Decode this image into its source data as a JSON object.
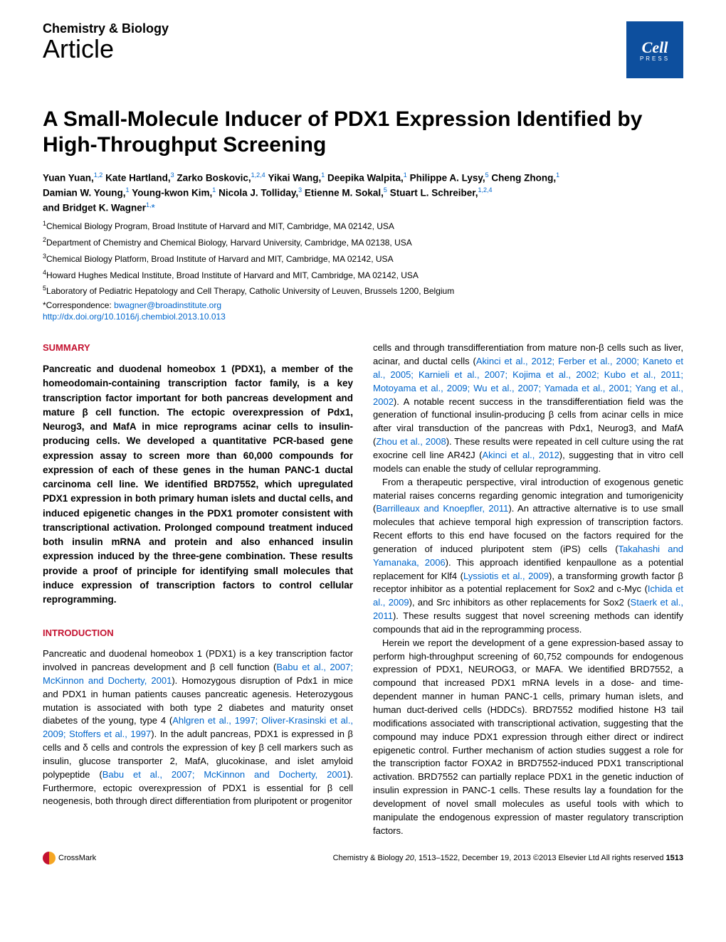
{
  "header": {
    "journal": "Chemistry & Biology",
    "article_type": "Article",
    "logo_top": "Cell",
    "logo_bottom": "PRESS"
  },
  "title": "A Small-Molecule Inducer of PDX1 Expression Identified by High-Throughput Screening",
  "authors_line1": "Yuan Yuan,",
  "authors_sup1": "1,2",
  "authors_a2": " Kate Hartland,",
  "authors_sup2": "3",
  "authors_a3": " Zarko Boskovic,",
  "authors_sup3": "1,2,4",
  "authors_a4": " Yikai Wang,",
  "authors_sup4": "1",
  "authors_a5": " Deepika Walpita,",
  "authors_sup5": "1",
  "authors_a6": " Philippe A. Lysy,",
  "authors_sup6": "5",
  "authors_a7": " Cheng Zhong,",
  "authors_sup7": "1",
  "authors_a8": "Damian W. Young,",
  "authors_sup8": "1",
  "authors_a9": " Young-kwon Kim,",
  "authors_sup9": "1",
  "authors_a10": " Nicola J. Tolliday,",
  "authors_sup10": "3",
  "authors_a11": " Etienne M. Sokal,",
  "authors_sup11": "5",
  "authors_a12": " Stuart L. Schreiber,",
  "authors_sup12": "1,2,4",
  "authors_a13": "and Bridget K. Wagner",
  "authors_sup13": "1,",
  "authors_star": "*",
  "aff1": "Chemical Biology Program, Broad Institute of Harvard and MIT, Cambridge, MA 02142, USA",
  "aff2": "Department of Chemistry and Chemical Biology, Harvard University, Cambridge, MA 02138, USA",
  "aff3": "Chemical Biology Platform, Broad Institute of Harvard and MIT, Cambridge, MA 02142, USA",
  "aff4": "Howard Hughes Medical Institute, Broad Institute of Harvard and MIT, Cambridge, MA 02142, USA",
  "aff5": "Laboratory of Pediatric Hepatology and Cell Therapy, Catholic University of Leuven, Brussels 1200, Belgium",
  "corr_label": "*Correspondence: ",
  "corr_email": "bwagner@broadinstitute.org",
  "doi": "http://dx.doi.org/10.1016/j.chembiol.2013.10.013",
  "summary_heading": "SUMMARY",
  "summary_text": "Pancreatic and duodenal homeobox 1 (PDX1), a member of the homeodomain-containing transcription factor family, is a key transcription factor important for both pancreas development and mature β cell function. The ectopic overexpression of Pdx1, Neurog3, and MafA in mice reprograms acinar cells to insulin-producing cells. We developed a quantitative PCR-based gene expression assay to screen more than 60,000 compounds for expression of each of these genes in the human PANC-1 ductal carcinoma cell line. We identified BRD7552, which upregulated PDX1 expression in both primary human islets and ductal cells, and induced epigenetic changes in the PDX1 promoter consistent with transcriptional activation. Prolonged compound treatment induced both insulin mRNA and protein and also enhanced insulin expression induced by the three-gene combination. These results provide a proof of principle for identifying small molecules that induce expression of transcription factors to control cellular reprogramming.",
  "intro_heading": "INTRODUCTION",
  "intro_p1a": "Pancreatic and duodenal homeobox 1 (PDX1) is a key transcription factor involved in pancreas development and β cell function (",
  "intro_p1_link1": "Babu et al., 2007; McKinnon and Docherty, 2001",
  "intro_p1b": "). Homozygous disruption of Pdx1 in mice and PDX1 in human patients causes pancreatic agenesis. Heterozygous mutation is associated with both type 2 diabetes and maturity onset diabetes of the young, type 4 (",
  "intro_p1_link2": "Ahlgren et al., 1997; Oliver-Krasinski et al., 2009; Stoffers et al., 1997",
  "intro_p1c": "). In the adult pancreas, PDX1 is expressed in β cells and δ cells and controls the expression of key β cell markers such as insulin, glucose transporter 2, MafA, glucokinase, and islet amyloid polypeptide (",
  "intro_p1_link3": "Babu et al., 2007; McKinnon and Docherty, 2001",
  "intro_p1d": "). Furthermore, ectopic overexpression of PDX1 is essential for β cell neogenesis, both through direct differentiation from pluripotent or progenitor",
  "col2_p1a": "cells and through transdifferentiation from mature non-β cells such as liver, acinar, and ductal cells (",
  "col2_p1_link1": "Akinci et al., 2012; Ferber et al., 2000; Kaneto et al., 2005; Karnieli et al., 2007; Kojima et al., 2002; Kubo et al., 2011; Motoyama et al., 2009; Wu et al., 2007; Yamada et al., 2001; Yang et al., 2002",
  "col2_p1b": "). A notable recent success in the transdifferentiation field was the generation of functional insulin-producing β cells from acinar cells in mice after viral transduction of the pancreas with Pdx1, Neurog3, and MafA (",
  "col2_p1_link2": "Zhou et al., 2008",
  "col2_p1c": "). These results were repeated in cell culture using the rat exocrine cell line AR42J (",
  "col2_p1_link3": "Akinci et al., 2012",
  "col2_p1d": "), suggesting that in vitro cell models can enable the study of cellular reprogramming.",
  "col2_p2a": "From a therapeutic perspective, viral introduction of exogenous genetic material raises concerns regarding genomic integration and tumorigenicity (",
  "col2_p2_link1": "Barrilleaux and Knoepfler, 2011",
  "col2_p2b": "). An attractive alternative is to use small molecules that achieve temporal high expression of transcription factors. Recent efforts to this end have focused on the factors required for the generation of induced pluripotent stem (iPS) cells (",
  "col2_p2_link2": "Takahashi and Yamanaka, 2006",
  "col2_p2c": "). This approach identified kenpaullone as a potential replacement for Klf4 (",
  "col2_p2_link3": "Lyssiotis et al., 2009",
  "col2_p2d": "), a transforming growth factor β receptor inhibitor as a potential replacement for Sox2 and c-Myc (",
  "col2_p2_link4": "Ichida et al., 2009",
  "col2_p2e": "), and Src inhibitors as other replacements for Sox2 (",
  "col2_p2_link5": "Staerk et al., 2011",
  "col2_p2f": "). These results suggest that novel screening methods can identify compounds that aid in the reprogramming process.",
  "col2_p3": "Herein we report the development of a gene expression-based assay to perform high-throughput screening of 60,752 compounds for endogenous expression of PDX1, NEUROG3, or MAFA. We identified BRD7552, a compound that increased PDX1 mRNA levels in a dose- and time-dependent manner in human PANC-1 cells, primary human islets, and human duct-derived cells (HDDCs). BRD7552 modified histone H3 tail modifications associated with transcriptional activation, suggesting that the compound may induce PDX1 expression through either direct or indirect epigenetic control. Further mechanism of action studies suggest a role for the transcription factor FOXA2 in BRD7552-induced PDX1 transcriptional activation. BRD7552 can partially replace PDX1 in the genetic induction of insulin expression in PANC-1 cells. These results lay a foundation for the development of novel small molecules as useful tools with which to manipulate the endogenous expression of master regulatory transcription factors.",
  "footer": {
    "crossmark": "CrossMark",
    "citation_prefix": "Chemistry & Biology ",
    "volume": "20",
    "pages": ", 1513–1522, December 19, 2013 ©2013 Elsevier Ltd All rights reserved ",
    "pagenum": "1513"
  }
}
